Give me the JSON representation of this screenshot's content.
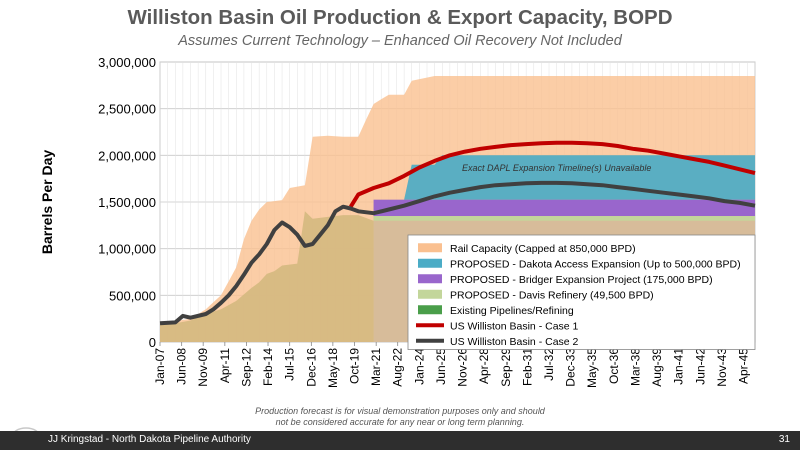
{
  "page": {
    "footer_text": "JJ Kringstad - North Dakota Pipeline Authority",
    "page_number": "31",
    "footnote_line1": "Production forecast is for visual demonstration purposes only and should",
    "footnote_line2": "not be considered accurate for any near or long term planning."
  },
  "chart_data": {
    "type": "area",
    "title": "Williston Basin Oil Production & Export Capacity, BOPD",
    "subtitle": "Assumes Current Technology – Enhanced Oil Recovery Not Included",
    "ylabel": "Barrels Per Day",
    "xlabel": "",
    "ylim": [
      0,
      3000000
    ],
    "yticks": [
      0,
      500000,
      1000000,
      1500000,
      2000000,
      2500000,
      3000000
    ],
    "ytick_labels": [
      "0",
      "500,000",
      "1,000,000",
      "1,500,000",
      "2,000,000",
      "2,500,000",
      "3,000,000"
    ],
    "xlim": [
      2007.0,
      2046.0
    ],
    "xticks": [
      {
        "label": "Jan-07",
        "x": 2007.0
      },
      {
        "label": "Jun-08",
        "x": 2008.42
      },
      {
        "label": "Nov-09",
        "x": 2009.83
      },
      {
        "label": "Apr-11",
        "x": 2011.25
      },
      {
        "label": "Sep-12",
        "x": 2012.67
      },
      {
        "label": "Feb-14",
        "x": 2014.08
      },
      {
        "label": "Jul-15",
        "x": 2015.5
      },
      {
        "label": "Dec-16",
        "x": 2016.92
      },
      {
        "label": "May-18",
        "x": 2018.33
      },
      {
        "label": "Oct-19",
        "x": 2019.75
      },
      {
        "label": "Mar-21",
        "x": 2021.17
      },
      {
        "label": "Aug-22",
        "x": 2022.58
      },
      {
        "label": "Jan-24",
        "x": 2024.0
      },
      {
        "label": "Jun-25",
        "x": 2025.42
      },
      {
        "label": "Nov-26",
        "x": 2026.83
      },
      {
        "label": "Apr-28",
        "x": 2028.25
      },
      {
        "label": "Sep-29",
        "x": 2029.67
      },
      {
        "label": "Feb-31",
        "x": 2031.08
      },
      {
        "label": "Jul-32",
        "x": 2032.5
      },
      {
        "label": "Dec-33",
        "x": 2033.92
      },
      {
        "label": "May-35",
        "x": 2035.33
      },
      {
        "label": "Oct-36",
        "x": 2036.75
      },
      {
        "label": "Mar-38",
        "x": 2038.17
      },
      {
        "label": "Aug-39",
        "x": 2039.58
      },
      {
        "label": "Jan-41",
        "x": 2041.0
      },
      {
        "label": "Jun-42",
        "x": 2042.42
      },
      {
        "label": "Nov-43",
        "x": 2043.83
      },
      {
        "label": "Apr-45",
        "x": 2045.25
      }
    ],
    "grid": true,
    "legend_position": "bottom-right",
    "annotation": "Exact DAPL Expansion Timeline(s) Unavailable",
    "series": [
      {
        "name": "Existing Pipelines/Refining",
        "kind": "area",
        "color": "#4a9e4a",
        "points": [
          [
            2007,
            200000
          ],
          [
            2008,
            200000
          ],
          [
            2009,
            230000
          ],
          [
            2010,
            300000
          ],
          [
            2011,
            350000
          ],
          [
            2012,
            440000
          ],
          [
            2013,
            580000
          ],
          [
            2013.5,
            640000
          ],
          [
            2014,
            730000
          ],
          [
            2014.5,
            760000
          ],
          [
            2015,
            820000
          ],
          [
            2016,
            840000
          ],
          [
            2016.5,
            1400000
          ],
          [
            2017,
            1320000
          ],
          [
            2018,
            1340000
          ],
          [
            2019,
            1360000
          ],
          [
            2020,
            1360000
          ],
          [
            2021,
            1300000
          ],
          [
            2046,
            1300000
          ]
        ]
      },
      {
        "name": "PROPOSED - Davis Refinery (49,500 BPD)",
        "kind": "area",
        "color": "#c3d69b",
        "points": [
          [
            2021,
            1300000
          ],
          [
            2046,
            1300000
          ]
        ],
        "amount": 49500
      },
      {
        "name": "PROPOSED - Bridger Expansion Project (175,000 BPD)",
        "kind": "area",
        "color": "#9966cc",
        "points": [
          [
            2021,
            1349500
          ],
          [
            2046,
            1349500
          ]
        ],
        "amount": 175000
      },
      {
        "name": "PROPOSED - Dakota Access Expansion (Up to 500,000 BPD)",
        "kind": "area",
        "color": "#4bacc6",
        "points": [
          [
            2021,
            1524500
          ],
          [
            2023,
            1524500
          ],
          [
            2023.5,
            1900000
          ],
          [
            2025,
            1900000
          ],
          [
            2025.5,
            2000000
          ],
          [
            2046,
            2000000
          ]
        ]
      },
      {
        "name": "Rail Capacity (Capped at 850,000 BPD)",
        "kind": "area",
        "color": "#fac090",
        "points": [
          [
            2007,
            200000
          ],
          [
            2009,
            250000
          ],
          [
            2010,
            350000
          ],
          [
            2011,
            500000
          ],
          [
            2011.5,
            650000
          ],
          [
            2012,
            800000
          ],
          [
            2012.5,
            1100000
          ],
          [
            2013,
            1300000
          ],
          [
            2013.5,
            1420000
          ],
          [
            2014,
            1500000
          ],
          [
            2015,
            1520000
          ],
          [
            2015.5,
            1650000
          ],
          [
            2016.5,
            1680000
          ],
          [
            2017,
            2200000
          ],
          [
            2018,
            2210000
          ],
          [
            2019,
            2200000
          ],
          [
            2020,
            2200000
          ],
          [
            2020.5,
            2380000
          ],
          [
            2021,
            2550000
          ],
          [
            2021.5,
            2600000
          ],
          [
            2022,
            2650000
          ],
          [
            2023,
            2650000
          ],
          [
            2023.5,
            2800000
          ],
          [
            2025,
            2850000
          ],
          [
            2046,
            2850000
          ]
        ]
      },
      {
        "name": "US Williston Basin - Case 1",
        "kind": "line",
        "color": "#c00000",
        "points": [
          [
            2019.5,
            1450000
          ],
          [
            2020,
            1580000
          ],
          [
            2021,
            1650000
          ],
          [
            2022,
            1700000
          ],
          [
            2023,
            1780000
          ],
          [
            2024,
            1870000
          ],
          [
            2025,
            1940000
          ],
          [
            2026,
            2000000
          ],
          [
            2027,
            2040000
          ],
          [
            2028,
            2070000
          ],
          [
            2029,
            2090000
          ],
          [
            2030,
            2110000
          ],
          [
            2031,
            2120000
          ],
          [
            2032,
            2130000
          ],
          [
            2033,
            2135000
          ],
          [
            2034,
            2135000
          ],
          [
            2035,
            2130000
          ],
          [
            2036,
            2120000
          ],
          [
            2037,
            2100000
          ],
          [
            2038,
            2070000
          ],
          [
            2039,
            2050000
          ],
          [
            2040,
            2020000
          ],
          [
            2041,
            1990000
          ],
          [
            2042,
            1960000
          ],
          [
            2043,
            1930000
          ],
          [
            2044,
            1890000
          ],
          [
            2045,
            1850000
          ],
          [
            2046,
            1810000
          ]
        ]
      },
      {
        "name": "US Williston Basin - Case 2",
        "kind": "line",
        "color": "#404040",
        "points": [
          [
            2007,
            200000
          ],
          [
            2008,
            210000
          ],
          [
            2008.5,
            280000
          ],
          [
            2009,
            260000
          ],
          [
            2010,
            300000
          ],
          [
            2010.5,
            350000
          ],
          [
            2011,
            420000
          ],
          [
            2011.5,
            500000
          ],
          [
            2012,
            600000
          ],
          [
            2012.5,
            720000
          ],
          [
            2013,
            850000
          ],
          [
            2013.5,
            940000
          ],
          [
            2014,
            1050000
          ],
          [
            2014.5,
            1200000
          ],
          [
            2015,
            1280000
          ],
          [
            2015.5,
            1230000
          ],
          [
            2016,
            1150000
          ],
          [
            2016.5,
            1030000
          ],
          [
            2017,
            1050000
          ],
          [
            2017.5,
            1150000
          ],
          [
            2018,
            1250000
          ],
          [
            2018.5,
            1400000
          ],
          [
            2019,
            1450000
          ],
          [
            2019.5,
            1430000
          ],
          [
            2020,
            1400000
          ],
          [
            2021,
            1380000
          ],
          [
            2022,
            1420000
          ],
          [
            2023,
            1460000
          ],
          [
            2024,
            1510000
          ],
          [
            2025,
            1560000
          ],
          [
            2026,
            1600000
          ],
          [
            2027,
            1630000
          ],
          [
            2028,
            1660000
          ],
          [
            2029,
            1680000
          ],
          [
            2030,
            1690000
          ],
          [
            2031,
            1700000
          ],
          [
            2032,
            1705000
          ],
          [
            2033,
            1705000
          ],
          [
            2034,
            1700000
          ],
          [
            2035,
            1690000
          ],
          [
            2036,
            1680000
          ],
          [
            2037,
            1660000
          ],
          [
            2038,
            1640000
          ],
          [
            2039,
            1620000
          ],
          [
            2040,
            1600000
          ],
          [
            2041,
            1580000
          ],
          [
            2042,
            1560000
          ],
          [
            2043,
            1540000
          ],
          [
            2044,
            1510000
          ],
          [
            2045,
            1490000
          ],
          [
            2046,
            1460000
          ]
        ]
      }
    ],
    "legend_order": [
      4,
      3,
      2,
      1,
      0,
      5,
      6
    ]
  }
}
